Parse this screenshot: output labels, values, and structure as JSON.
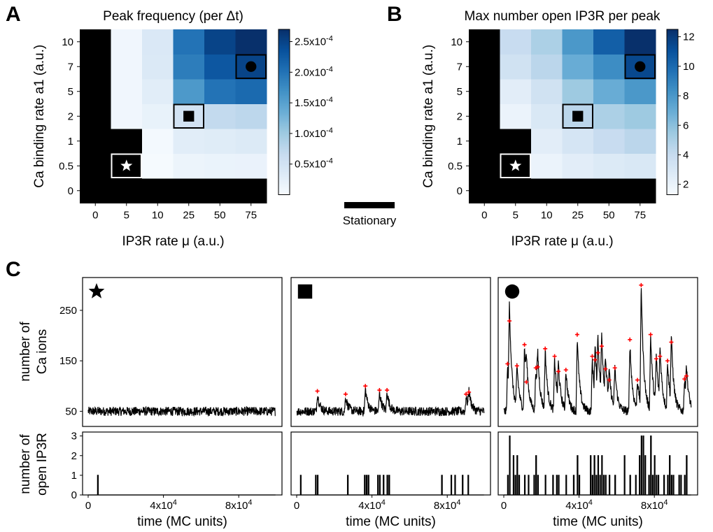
{
  "panel_labels": [
    "A",
    "B",
    "C"
  ],
  "chart_data": [
    {
      "type": "heatmap",
      "panel": "A",
      "title": "Peak frequency (per Δt)",
      "xlabel": "IP3R rate μ (a.u.)",
      "ylabel": "Ca binding rate a1 (a.u.)",
      "x_categories": [
        "0",
        "5",
        "10",
        "25",
        "50",
        "75"
      ],
      "y_categories": [
        "0",
        "0.5",
        "1",
        "2",
        "5",
        "7",
        "10"
      ],
      "values": [
        [
          null,
          null,
          null,
          null,
          null,
          null
        ],
        [
          null,
          null,
          3e-06,
          1.5e-05,
          1.7e-05,
          1.8e-05
        ],
        [
          null,
          null,
          5e-06,
          3e-05,
          3.2e-05,
          3.6e-05
        ],
        [
          null,
          1e-05,
          2e-05,
          5e-05,
          7e-05,
          7.5e-05
        ],
        [
          null,
          1e-05,
          3e-05,
          0.00016,
          0.0002,
          0.00021
        ],
        [
          null,
          1e-05,
          3.8e-05,
          0.00019,
          0.00023,
          0.00025
        ],
        [
          null,
          1e-05,
          4e-05,
          0.0002,
          0.00025,
          0.00027
        ]
      ],
      "colorbar": {
        "min": 0,
        "max": 0.00027,
        "ticks": [
          5e-05,
          0.0001,
          0.00015,
          0.0002,
          0.00025
        ],
        "tick_labels": [
          "0.5x10-4",
          "1.0x10-4",
          "1.5x10-4",
          "2.0x10-4",
          "2.5x10-4"
        ]
      },
      "stationary_color": "#000000",
      "markers": [
        {
          "symbol": "star",
          "x": "5",
          "y": "0.5"
        },
        {
          "symbol": "square",
          "x": "25",
          "y": "2"
        },
        {
          "symbol": "circle",
          "x": "75",
          "y": "7"
        }
      ]
    },
    {
      "type": "heatmap",
      "panel": "B",
      "title": "Max number open IP3R per peak",
      "xlabel": "IP3R rate μ (a.u.)",
      "ylabel": "Ca binding rate a1 (a.u.)",
      "x_categories": [
        "0",
        "5",
        "10",
        "25",
        "50",
        "75"
      ],
      "y_categories": [
        "0",
        "0.5",
        "1",
        "2",
        "5",
        "7",
        "10"
      ],
      "values": [
        [
          null,
          null,
          null,
          null,
          null,
          null
        ],
        [
          null,
          null,
          2.0,
          2.5,
          2.8,
          3.0
        ],
        [
          null,
          null,
          2.5,
          3.2,
          4.0,
          4.5
        ],
        [
          null,
          2.0,
          3.0,
          4.5,
          5.0,
          5.5
        ],
        [
          null,
          2.5,
          3.5,
          5.5,
          7.0,
          8.0
        ],
        [
          null,
          3.5,
          4.5,
          7.0,
          8.5,
          11.5
        ],
        [
          null,
          4.0,
          5.0,
          8.0,
          10.5,
          12.5
        ]
      ],
      "colorbar": {
        "min": 1.3,
        "max": 12.5,
        "ticks": [
          2,
          4,
          6,
          8,
          10,
          12
        ],
        "tick_labels": [
          "2",
          "4",
          "6",
          "8",
          "10",
          "12"
        ]
      },
      "stationary_color": "#000000",
      "markers": [
        {
          "symbol": "star",
          "x": "5",
          "y": "0.5"
        },
        {
          "symbol": "square",
          "x": "25",
          "y": "2"
        },
        {
          "symbol": "circle",
          "x": "75",
          "y": "7"
        }
      ]
    },
    {
      "type": "line",
      "panel": "C",
      "xlabel": "time (MC units)",
      "ylabel_top": "number of Ca ions",
      "ylabel_bottom": "number of open IP3R",
      "x_range": [
        0,
        100000
      ],
      "x_ticks": [
        "0",
        "4x104",
        "8x104"
      ],
      "top_y_range": [
        20,
        315
      ],
      "top_y_ticks": [
        "50",
        "150",
        "250"
      ],
      "bottom_y_range": [
        0,
        3.2
      ],
      "bottom_y_ticks": [
        "0",
        "1",
        "2",
        "3"
      ],
      "peak_marker_color": "#ff0000",
      "series": [
        {
          "marker": "star",
          "ca_baseline": 50,
          "peaks": [],
          "ip3r_events": [
            [
              5000,
              1
            ]
          ]
        },
        {
          "marker": "square",
          "ca_baseline": 50,
          "peaks": [
            [
              11000,
              86
            ],
            [
              26000,
              80
            ],
            [
              36500,
              96
            ],
            [
              44000,
              88
            ],
            [
              48000,
              88
            ],
            [
              90000,
              80
            ],
            [
              91500,
              84
            ]
          ],
          "ip3r_events": [
            [
              2000,
              1
            ],
            [
              10000,
              1
            ],
            [
              11000,
              1
            ],
            [
              27000,
              1
            ],
            [
              36000,
              1
            ],
            [
              37000,
              1
            ],
            [
              38000,
              1
            ],
            [
              43000,
              1
            ],
            [
              44000,
              1
            ],
            [
              46000,
              1
            ],
            [
              48000,
              1
            ],
            [
              49000,
              1
            ],
            [
              77000,
              1
            ],
            [
              82000,
              1
            ],
            [
              84000,
              1
            ],
            [
              88000,
              1
            ],
            [
              91000,
              1
            ]
          ]
        },
        {
          "marker": "circle",
          "ca_baseline": 50,
          "peaks": [
            [
              2000,
              140
            ],
            [
              3000,
              225
            ],
            [
              7000,
              136
            ],
            [
              11000,
              178
            ],
            [
              12000,
              104
            ],
            [
              17000,
              132
            ],
            [
              18000,
              134
            ],
            [
              22000,
              170
            ],
            [
              27000,
              155
            ],
            [
              29000,
              125
            ],
            [
              33000,
              128
            ],
            [
              39000,
              198
            ],
            [
              47000,
              155
            ],
            [
              48500,
              148
            ],
            [
              50000,
              162
            ],
            [
              52000,
              175
            ],
            [
              54000,
              130
            ],
            [
              56000,
              108
            ],
            [
              59000,
              132
            ],
            [
              67000,
              188
            ],
            [
              71000,
              108
            ],
            [
              73000,
              296
            ],
            [
              78000,
              198
            ],
            [
              81000,
              150
            ],
            [
              83000,
              155
            ],
            [
              87000,
              146
            ],
            [
              89000,
              183
            ],
            [
              96000,
              110
            ],
            [
              97000,
              116
            ]
          ],
          "ip3r_events": [
            [
              2000,
              1
            ],
            [
              3000,
              3
            ],
            [
              5000,
              2
            ],
            [
              6000,
              1
            ],
            [
              7000,
              2
            ],
            [
              8000,
              1
            ],
            [
              11000,
              1
            ],
            [
              13000,
              1
            ],
            [
              16000,
              1
            ],
            [
              17000,
              2
            ],
            [
              18000,
              1
            ],
            [
              22000,
              1
            ],
            [
              26000,
              1
            ],
            [
              28000,
              1
            ],
            [
              29000,
              1
            ],
            [
              33000,
              1
            ],
            [
              37000,
              1
            ],
            [
              39000,
              2
            ],
            [
              40000,
              1
            ],
            [
              46000,
              2
            ],
            [
              47000,
              1
            ],
            [
              48000,
              2
            ],
            [
              49000,
              1
            ],
            [
              50000,
              2
            ],
            [
              51000,
              1
            ],
            [
              52000,
              2
            ],
            [
              53000,
              1
            ],
            [
              54000,
              1
            ],
            [
              56000,
              1
            ],
            [
              59000,
              1
            ],
            [
              64000,
              2
            ],
            [
              67000,
              1
            ],
            [
              70000,
              1
            ],
            [
              72000,
              2
            ],
            [
              73000,
              3
            ],
            [
              74000,
              3
            ],
            [
              75000,
              2
            ],
            [
              77000,
              1
            ],
            [
              78000,
              3
            ],
            [
              79000,
              1
            ],
            [
              80000,
              2
            ],
            [
              81000,
              1
            ],
            [
              82000,
              1
            ],
            [
              85000,
              1
            ],
            [
              87000,
              1
            ],
            [
              88000,
              2
            ],
            [
              89000,
              1
            ],
            [
              90000,
              1
            ],
            [
              93000,
              1
            ],
            [
              94000,
              1
            ],
            [
              96000,
              1
            ],
            [
              97000,
              2
            ]
          ]
        }
      ]
    }
  ],
  "legend": {
    "stationary_label": "Stationary"
  }
}
